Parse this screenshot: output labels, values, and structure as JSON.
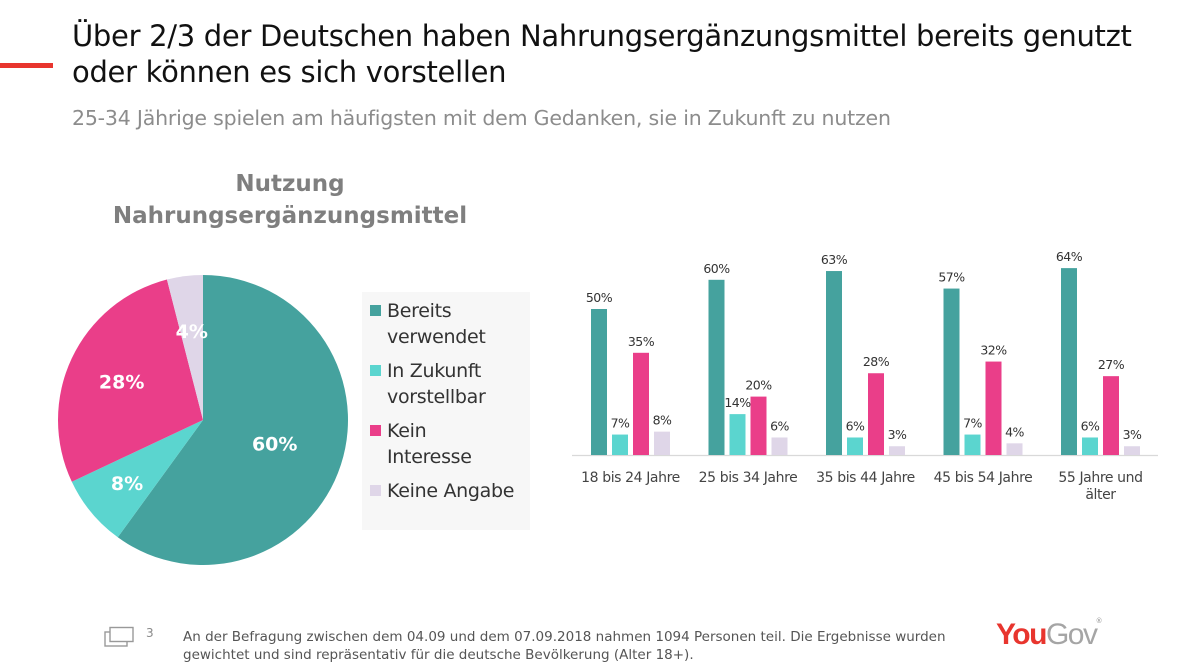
{
  "slide": {
    "title": "Über 2/3 der Deutschen haben Nahrungsergänzungsmittel bereits genutzt oder können es sich vorstellen",
    "subtitle": "25-34 Jährige spielen am häufigsten mit dem Gedanken, sie in Zukunft zu nutzen",
    "accent_color": "#e8352e",
    "page_number": "3",
    "footer_text": "An der Befragung zwischen dem 04.09 und dem 07.09.2018 nahmen 1094 Personen teil. Die Ergebnisse wurden gewichtet und sind repräsentativ für die deutsche Bevölkerung (Alter 18+).",
    "logo": {
      "you": "You",
      "gov": "Gov",
      "you_color": "#e8352e",
      "gov_color": "#a5a5a5"
    }
  },
  "chart_data": [
    {
      "type": "pie",
      "title": "Nutzung Nahrungsergänzungsmittel",
      "title_lines": [
        "Nutzung",
        "Nahrungsergänzungsmittel"
      ],
      "legend_position": "right",
      "slices": [
        {
          "label": "Bereits verwendet",
          "legend_lines": [
            "Bereits",
            "verwendet"
          ],
          "value": 60,
          "display": "60%",
          "color": "#45a29e"
        },
        {
          "label": "In Zukunft vorstellbar",
          "legend_lines": [
            "In Zukunft",
            "vorstellbar"
          ],
          "value": 8,
          "display": "8%",
          "color": "#5bd5cf"
        },
        {
          "label": "Kein Interesse",
          "legend_lines": [
            "Kein",
            "Interesse"
          ],
          "value": 28,
          "display": "28%",
          "color": "#ea3e89"
        },
        {
          "label": "Keine Angabe",
          "legend_lines": [
            "Keine Angabe"
          ],
          "value": 4,
          "display": "4%",
          "color": "#dfd6e8"
        }
      ]
    },
    {
      "type": "bar",
      "title": "",
      "xlabel": "",
      "ylabel": "",
      "ylim": [
        0,
        70
      ],
      "grid": false,
      "categories": [
        "18 bis 24 Jahre",
        "25 bis 34 Jahre",
        "35 bis 44 Jahre",
        "45 bis 54 Jahre",
        "55 Jahre und älter"
      ],
      "category_lines": [
        [
          "18 bis 24 Jahre"
        ],
        [
          "25 bis 34 Jahre"
        ],
        [
          "35 bis 44 Jahre"
        ],
        [
          "45 bis 54 Jahre"
        ],
        [
          "55 Jahre und",
          "älter"
        ]
      ],
      "series": [
        {
          "name": "Bereits verwendet",
          "color": "#45a29e",
          "values": [
            50,
            60,
            63,
            57,
            64
          ]
        },
        {
          "name": "In Zukunft vorstellbar",
          "color": "#5bd5cf",
          "values": [
            7,
            14,
            6,
            7,
            6
          ]
        },
        {
          "name": "Kein Interesse",
          "color": "#ea3e89",
          "values": [
            35,
            20,
            28,
            32,
            27
          ]
        },
        {
          "name": "Keine Angabe",
          "color": "#dfd6e8",
          "values": [
            8,
            6,
            3,
            4,
            3
          ]
        }
      ],
      "value_suffix": "%"
    }
  ]
}
